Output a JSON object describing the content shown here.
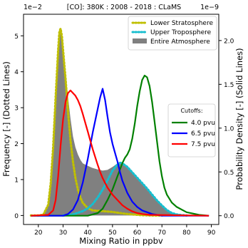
{
  "chart_data": {
    "type": "line",
    "title": "[CO]: 380K : 2008 - 2018 : CLaMS",
    "xlabel": "Mixing Ratio in ppbv",
    "ylabel_left": "Frequency [-] (Dotted Lines)",
    "ylabel_right": "Probability Density [-] (Solid Lines)",
    "left_exponent": "1e−2",
    "right_exponent": "1e−9",
    "xlim": [
      14,
      93
    ],
    "ylim_left": [
      -0.25,
      5.6
    ],
    "ylim_right": [
      -0.1,
      2.3
    ],
    "xticks": [
      20,
      30,
      40,
      50,
      60,
      70,
      80,
      90
    ],
    "yticks_left": [
      0,
      1,
      2,
      3,
      4,
      5
    ],
    "yticks_left_labels": [
      "0",
      "1",
      "2",
      "3",
      "4",
      "5"
    ],
    "yticks_right": [
      0.0,
      0.5,
      1.0,
      1.5,
      2.0
    ],
    "yticks_right_labels": [
      "0.0",
      "0.5",
      "1.0",
      "1.5",
      "2.0"
    ],
    "frequency_series": [
      {
        "name": "Lower Stratosphere",
        "style": "dotted",
        "color": "#bfbf00",
        "x": [
          17,
          20,
          22,
          24,
          25,
          26,
          27,
          28,
          28.5,
          29,
          29.5,
          30,
          31,
          32,
          33,
          34,
          35,
          36,
          37,
          38,
          40,
          42,
          44,
          46,
          48,
          50,
          52,
          55,
          58,
          62,
          66,
          70
        ],
        "y": [
          0,
          0,
          0.02,
          0.3,
          0.9,
          1.9,
          3.3,
          4.6,
          5.1,
          5.2,
          5.0,
          4.6,
          3.8,
          2.9,
          2.1,
          1.5,
          1.05,
          0.72,
          0.5,
          0.35,
          0.2,
          0.14,
          0.13,
          0.12,
          0.11,
          0.1,
          0.08,
          0.05,
          0.03,
          0.01,
          0.0,
          0.0
        ]
      },
      {
        "name": "Upper Troposphere",
        "style": "dotted",
        "color": "#17becf",
        "x": [
          30,
          34,
          38,
          40,
          42,
          44,
          46,
          48,
          50,
          52,
          53,
          54,
          56,
          58,
          60,
          62,
          64,
          66,
          68,
          70,
          72,
          74,
          76,
          78,
          80
        ],
        "y": [
          0,
          0.03,
          0.12,
          0.2,
          0.32,
          0.5,
          0.72,
          0.98,
          1.25,
          1.42,
          1.47,
          1.45,
          1.35,
          1.2,
          1.05,
          0.9,
          0.75,
          0.58,
          0.42,
          0.28,
          0.15,
          0.07,
          0.03,
          0.01,
          0
        ]
      },
      {
        "name": "Entire Atmosphere",
        "style": "filled",
        "color": "#808080",
        "x": [
          17,
          22,
          24,
          25,
          26,
          27,
          28,
          29,
          30,
          31,
          32,
          33,
          34,
          35,
          36,
          37,
          38,
          40,
          42,
          44,
          46,
          48,
          50,
          52,
          53,
          54,
          56,
          58,
          60,
          62,
          64,
          66,
          68,
          70,
          72,
          74,
          76,
          78,
          80
        ],
        "y": [
          0,
          0.02,
          0.35,
          1.0,
          2.0,
          3.4,
          4.6,
          5.2,
          4.7,
          4.0,
          3.3,
          2.7,
          2.2,
          1.9,
          1.7,
          1.55,
          1.45,
          1.38,
          1.32,
          1.28,
          1.25,
          1.27,
          1.35,
          1.45,
          1.5,
          1.47,
          1.38,
          1.23,
          1.07,
          0.9,
          0.75,
          0.58,
          0.42,
          0.28,
          0.16,
          0.08,
          0.03,
          0.01,
          0
        ]
      }
    ],
    "density_legend_title": "Cutoffs:",
    "density_series": [
      {
        "name": "4.0 pvu",
        "color": "#008000",
        "x": [
          17,
          40,
          44,
          46,
          48,
          50,
          52,
          54,
          55,
          56,
          57,
          58,
          59,
          60,
          61,
          62,
          63,
          64,
          65,
          66,
          67,
          68,
          69,
          70,
          71,
          72,
          74,
          76,
          80,
          85,
          89
        ],
        "y": [
          0,
          0,
          0.03,
          0.08,
          0.18,
          0.3,
          0.45,
          0.6,
          0.66,
          0.7,
          0.76,
          0.88,
          1.05,
          1.25,
          1.42,
          1.55,
          1.6,
          1.58,
          1.48,
          1.3,
          1.08,
          0.85,
          0.62,
          0.45,
          0.32,
          0.24,
          0.15,
          0.1,
          0.04,
          0.01,
          0
        ]
      },
      {
        "name": "6.5 pvu",
        "color": "#0000ff",
        "x": [
          17,
          30,
          32,
          34,
          36,
          38,
          40,
          42,
          44,
          45,
          46,
          47,
          48,
          49,
          50,
          51,
          52,
          53,
          54,
          56,
          58,
          60,
          62,
          64,
          66,
          68,
          70,
          75,
          89
        ],
        "y": [
          0,
          0,
          0.02,
          0.07,
          0.18,
          0.38,
          0.65,
          0.95,
          1.22,
          1.35,
          1.45,
          1.32,
          1.13,
          0.95,
          0.82,
          0.72,
          0.62,
          0.5,
          0.4,
          0.26,
          0.16,
          0.1,
          0.06,
          0.04,
          0.02,
          0.01,
          0,
          0,
          0
        ]
      },
      {
        "name": "7.5 pvu",
        "color": "#ff0000",
        "x": [
          17,
          24,
          26,
          27,
          28,
          29,
          30,
          31,
          32,
          33,
          34,
          35,
          36,
          37,
          38,
          39,
          40,
          41,
          42,
          43,
          44,
          45,
          46,
          48,
          50,
          52,
          54,
          56,
          58,
          60,
          62,
          65,
          89
        ],
        "y": [
          0,
          0.01,
          0.06,
          0.18,
          0.45,
          0.8,
          1.1,
          1.3,
          1.4,
          1.43,
          1.4,
          1.37,
          1.32,
          1.25,
          1.16,
          1.06,
          0.96,
          0.86,
          0.76,
          0.67,
          0.58,
          0.5,
          0.43,
          0.32,
          0.24,
          0.18,
          0.12,
          0.08,
          0.05,
          0.03,
          0.02,
          0.01,
          0
        ]
      }
    ]
  }
}
